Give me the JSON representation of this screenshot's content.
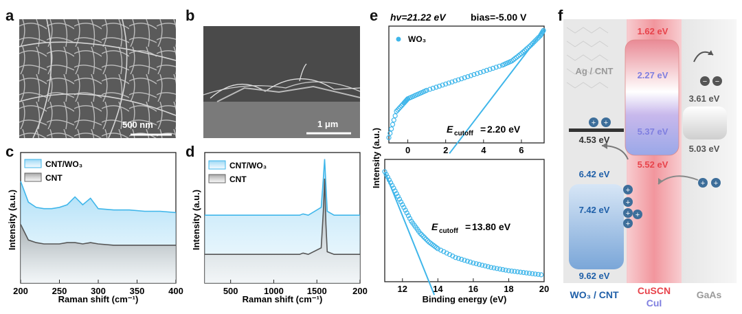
{
  "panels": {
    "a": {
      "letter": "a",
      "scale_bar": "500 nm"
    },
    "b": {
      "letter": "b",
      "scale_bar": "1 μm"
    },
    "c": {
      "letter": "c",
      "legend": [
        "CNT/WO₃",
        "CNT"
      ],
      "xlabel": "Raman shift (cm⁻¹)",
      "ylabel": "Intensity (a.u.)",
      "xticks": [
        "200",
        "250",
        "300",
        "350",
        "400"
      ]
    },
    "d": {
      "letter": "d",
      "legend": [
        "CNT/WO₃",
        "CNT"
      ],
      "xlabel": "Raman shift (cm⁻¹)",
      "ylabel": "Intensity (a.u.)",
      "xticks": [
        "500",
        "1000",
        "1500",
        "200"
      ]
    },
    "e": {
      "letter": "e",
      "header_hv": "hv=21.22 eV",
      "header_bias": "bias=-5.00 V",
      "legend": "WO₃",
      "ylabel": "Intensity (a.u.)",
      "xlabel": "Binding energy (eV)",
      "top_xticks": [
        "0",
        "2",
        "4",
        "6"
      ],
      "bottom_xticks": [
        "12",
        "14",
        "16",
        "18",
        "20"
      ],
      "cutoff_top": "2.20 eV",
      "cutoff_bottom": "13.80 eV",
      "cutoff_label": "E",
      "cutoff_sub": "cutoff"
    },
    "f": {
      "letter": "f",
      "labels": {
        "ag_cnt": "Ag / CNT",
        "wo3_cnt": "WO₃ / CNT",
        "cuscn": "CuSCN",
        "cui": "CuI",
        "gaas": "GaAs"
      },
      "energies": {
        "cuscn_top": "1.62 eV",
        "cui_top": "2.27 eV",
        "gaas_top": "3.61 eV",
        "ag_level": "4.53 eV",
        "gaas_bottom": "5.03 eV",
        "cui_bottom": "5.37 eV",
        "cuscn_bottom": "5.52 eV",
        "wo3_top": "6.42 eV",
        "wo3_mid": "7.42 eV",
        "wo3_bottom": "9.62 eV"
      }
    }
  },
  "colors": {
    "accent": "#3fb6ea",
    "dark_blue": "#1f5fa8",
    "red": "#e8434b",
    "purple": "#7f7fe0",
    "gray_text": "#9a9a9a"
  },
  "chart_data": [
    {
      "type": "line",
      "title": "",
      "xlabel": "Raman shift (cm⁻¹)",
      "ylabel": "Intensity (a.u.)",
      "xlim": [
        200,
        400
      ],
      "series": [
        {
          "name": "CNT/WO₃",
          "x": [
            200,
            210,
            220,
            230,
            240,
            250,
            260,
            270,
            280,
            290,
            300,
            320,
            340,
            360,
            380,
            400
          ],
          "y": [
            0.78,
            0.62,
            0.58,
            0.57,
            0.57,
            0.58,
            0.6,
            0.66,
            0.6,
            0.65,
            0.57,
            0.56,
            0.56,
            0.55,
            0.55,
            0.54
          ]
        },
        {
          "name": "CNT",
          "x": [
            200,
            210,
            220,
            230,
            240,
            250,
            260,
            270,
            280,
            290,
            300,
            320,
            340,
            360,
            380,
            400
          ],
          "y": [
            0.45,
            0.33,
            0.31,
            0.3,
            0.3,
            0.3,
            0.31,
            0.31,
            0.3,
            0.31,
            0.3,
            0.29,
            0.29,
            0.29,
            0.29,
            0.29
          ]
        }
      ]
    },
    {
      "type": "line",
      "title": "",
      "xlabel": "Raman shift (cm⁻¹)",
      "ylabel": "Intensity (a.u.)",
      "xlim": [
        200,
        2000
      ],
      "series": [
        {
          "name": "CNT/WO₃",
          "x": [
            200,
            500,
            1000,
            1300,
            1340,
            1400,
            1550,
            1575,
            1590,
            1605,
            1620,
            1700,
            2000
          ],
          "y": [
            0.52,
            0.52,
            0.52,
            0.52,
            0.53,
            0.52,
            0.58,
            0.8,
            0.95,
            0.75,
            0.55,
            0.52,
            0.52
          ]
        },
        {
          "name": "CNT",
          "x": [
            200,
            500,
            1000,
            1300,
            1340,
            1400,
            1550,
            1575,
            1590,
            1605,
            1620,
            1700,
            2000
          ],
          "y": [
            0.22,
            0.22,
            0.22,
            0.22,
            0.23,
            0.22,
            0.27,
            0.55,
            0.8,
            0.45,
            0.24,
            0.22,
            0.22
          ]
        }
      ]
    },
    {
      "type": "scatter",
      "title": "",
      "xlabel": "Binding energy (eV)",
      "ylabel": "Intensity (a.u.)",
      "xlim": [
        -1,
        7.2
      ],
      "series": [
        {
          "name": "WO₃",
          "x": [
            -1,
            -0.6,
            -0.2,
            0,
            0.5,
            1,
            2,
            3,
            4,
            5,
            5.5,
            6,
            6.5,
            7,
            7.2
          ],
          "y": [
            0.05,
            0.3,
            0.38,
            0.42,
            0.46,
            0.5,
            0.56,
            0.62,
            0.68,
            0.74,
            0.78,
            0.85,
            0.93,
            1.02,
            1.08
          ]
        }
      ],
      "annotation": "Ecutoff=2.20 eV"
    },
    {
      "type": "scatter",
      "title": "",
      "xlabel": "Binding energy (eV)",
      "ylabel": "Intensity (a.u.)",
      "xlim": [
        11,
        20
      ],
      "series": [
        {
          "name": "WO₃",
          "x": [
            11,
            11.5,
            12,
            12.5,
            13,
            13.5,
            14,
            15,
            16,
            17,
            18,
            19,
            20
          ],
          "y": [
            1.0,
            0.85,
            0.7,
            0.55,
            0.44,
            0.36,
            0.3,
            0.22,
            0.17,
            0.13,
            0.1,
            0.08,
            0.06
          ]
        }
      ],
      "annotation": "Ecutoff=13.80 eV"
    }
  ]
}
